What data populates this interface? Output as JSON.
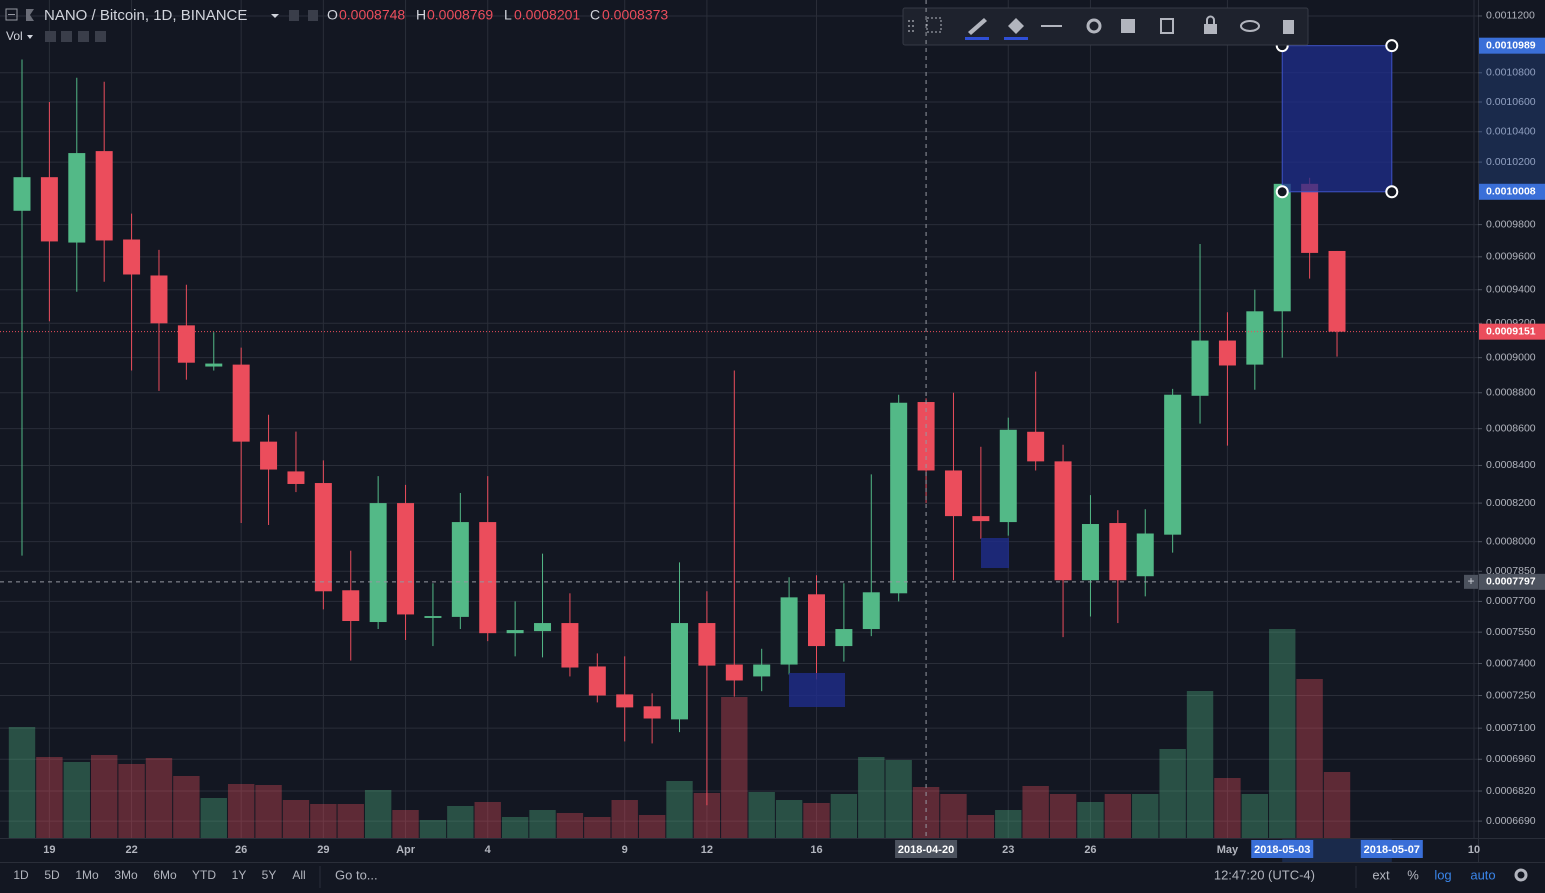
{
  "chart_data": {
    "type": "candlestick",
    "title": "NANO / Bitcoin, 1D, BINANCE",
    "legend_labels": [
      "O",
      "H",
      "L",
      "C"
    ],
    "volume_label": "Vol",
    "x": [
      "2018-03-18",
      "2018-03-19",
      "2018-03-20",
      "2018-03-21",
      "2018-03-22",
      "2018-03-23",
      "2018-03-24",
      "2018-03-25",
      "2018-03-26",
      "2018-03-27",
      "2018-03-28",
      "2018-03-29",
      "2018-03-30",
      "2018-03-31",
      "2018-04-01",
      "2018-04-02",
      "2018-04-03",
      "2018-04-04",
      "2018-04-05",
      "2018-04-06",
      "2018-04-07",
      "2018-04-08",
      "2018-04-09",
      "2018-04-10",
      "2018-04-11",
      "2018-04-12",
      "2018-04-13",
      "2018-04-14",
      "2018-04-15",
      "2018-04-16",
      "2018-04-17",
      "2018-04-18",
      "2018-04-19",
      "2018-04-20",
      "2018-04-21",
      "2018-04-22",
      "2018-04-23",
      "2018-04-24",
      "2018-04-25",
      "2018-04-26",
      "2018-04-27",
      "2018-04-28",
      "2018-04-29",
      "2018-04-30",
      "2018-05-01",
      "2018-05-02",
      "2018-05-03",
      "2018-05-04",
      "2018-05-05"
    ],
    "open": [
      0.0009887,
      0.0010102,
      0.0009688,
      0.0010272,
      0.0009707,
      0.0009486,
      0.0009188,
      0.0008949,
      0.000896,
      0.0008529,
      0.0008368,
      0.0008306,
      0.0007755,
      0.0007599,
      0.00082,
      0.0007619,
      0.0007624,
      0.0008101,
      0.0007545,
      0.0007555,
      0.0007594,
      0.0007386,
      0.0007255,
      0.00072,
      0.000714,
      0.0007594,
      0.0007395,
      0.0007339,
      0.0007395,
      0.0007735,
      0.0007483,
      0.0007565,
      0.000774,
      0.0008748,
      0.0008373,
      0.0008132,
      0.0008101,
      0.0008583,
      0.0008422,
      0.0007805,
      0.0008096,
      0.0007825,
      0.0008036,
      0.0008783,
      0.0009099,
      0.000896,
      0.0009271,
      0.0010059,
      0.0009636
    ],
    "high": [
      0.0010892,
      0.00106,
      0.0010766,
      0.0010738,
      0.0009869,
      0.0009643,
      0.000943,
      0.0009148,
      0.0009058,
      0.0008677,
      0.0008584,
      0.0008427,
      0.0007954,
      0.0008343,
      0.0008296,
      0.000779,
      0.0008253,
      0.0008343,
      0.00077,
      0.0007939,
      0.000774,
      0.0007448,
      0.0007434,
      0.000726,
      0.0007895,
      0.000775,
      0.0008926,
      0.000747,
      0.000782,
      0.000783,
      0.000779,
      0.0008352,
      0.0008789,
      0.0008769,
      0.00088,
      0.0008501,
      0.0008661,
      0.000892,
      0.0008512,
      0.0008242,
      0.0008163,
      0.0008168,
      0.0008822,
      0.0009679,
      0.0009265,
      0.00094,
      0.0010059,
      0.0010098,
      0.0009636
    ],
    "low": [
      0.0007929,
      0.0009212,
      0.0009388,
      0.0009448,
      0.0008926,
      0.0008811,
      0.0008874,
      0.0008926,
      0.0008096,
      0.0008086,
      0.0008258,
      0.0007661,
      0.0007414,
      0.0007565,
      0.0007512,
      0.0007483,
      0.0007565,
      0.0007507,
      0.0007434,
      0.0007429,
      0.0007339,
      0.0007218,
      0.000704,
      0.0007031,
      0.0007082,
      0.0006758,
      0.0007245,
      0.000727,
      0.0007348,
      0.0007325,
      0.0007409,
      0.0007531,
      0.00077,
      0.0008201,
      0.0007805,
      0.0008015,
      0.0008031,
      0.0008373,
      0.0007526,
      0.0007626,
      0.0007594,
      0.0007725,
      0.0007944,
      0.0008628,
      0.0008507,
      0.0008817,
      0.0009,
      0.0009467,
      0.0009006
    ],
    "close": [
      0.0010102,
      0.0009695,
      0.0010259,
      0.0009701,
      0.0009492,
      0.00092,
      0.0008971,
      0.0008966,
      0.0008529,
      0.0008378,
      0.0008301,
      0.000775,
      0.0007604,
      0.00082,
      0.0007636,
      0.0007628,
      0.0008101,
      0.0007545,
      0.000756,
      0.0007594,
      0.0007381,
      0.000725,
      0.0007195,
      0.0007144,
      0.0007594,
      0.000739,
      0.000732,
      0.0007395,
      0.000772,
      0.0007483,
      0.0007565,
      0.0007745,
      0.0008744,
      0.0008373,
      0.0008132,
      0.0008106,
      0.0008594,
      0.0008422,
      0.0007805,
      0.0008091,
      0.0007805,
      0.0008042,
      0.0008789,
      0.0009099,
      0.0008955,
      0.0009271,
      0.0010059,
      0.0009624,
      0.0009151
    ],
    "volume": [
      111,
      81,
      76,
      83,
      74,
      80,
      62,
      40,
      54,
      53,
      38,
      34,
      34,
      48,
      28,
      18,
      32,
      36,
      21,
      28,
      25,
      21,
      38,
      23,
      57,
      45,
      141,
      46,
      38,
      35,
      44,
      81,
      78,
      51,
      44,
      23,
      28,
      52,
      44,
      36,
      44,
      44,
      89,
      147,
      60,
      44,
      209,
      159,
      66
    ],
    "up_color": "#53b987",
    "down_color": "#eb4d5c",
    "log_scale": true,
    "grid": true,
    "ylim": [
      0.0006618,
      0.0011315
    ],
    "yticks": [
      {
        "value": 0.00112,
        "label": "0.0011200"
      },
      {
        "value": 0.00108,
        "label": "0.0010800"
      },
      {
        "value": 0.00106,
        "label": "0.0010600"
      },
      {
        "value": 0.00104,
        "label": "0.0010400"
      },
      {
        "value": 0.00102,
        "label": "0.0010200"
      },
      {
        "value": 0.00098,
        "label": "0.0009800"
      },
      {
        "value": 0.00096,
        "label": "0.0009600"
      },
      {
        "value": 0.00094,
        "label": "0.0009400"
      },
      {
        "value": 0.00092,
        "label": "0.0009200"
      },
      {
        "value": 0.0009,
        "label": "0.0009000"
      },
      {
        "value": 0.00088,
        "label": "0.0008800"
      },
      {
        "value": 0.00086,
        "label": "0.0008600"
      },
      {
        "value": 0.00084,
        "label": "0.0008400"
      },
      {
        "value": 0.00082,
        "label": "0.0008200"
      },
      {
        "value": 0.0008,
        "label": "0.0008000"
      },
      {
        "value": 0.000785,
        "label": "0.0007850"
      },
      {
        "value": 0.00077,
        "label": "0.0007700"
      },
      {
        "value": 0.000755,
        "label": "0.0007550"
      },
      {
        "value": 0.00074,
        "label": "0.0007400"
      },
      {
        "value": 0.000725,
        "label": "0.0007250"
      },
      {
        "value": 0.00071,
        "label": "0.0007100"
      },
      {
        "value": 0.000696,
        "label": "0.0006960"
      },
      {
        "value": 0.000682,
        "label": "0.0006820"
      },
      {
        "value": 0.000669,
        "label": "0.0006690"
      }
    ],
    "xlim": [
      "2018-03-17",
      "2018-05-10"
    ],
    "xticks": [
      {
        "value": "2018-03-19",
        "label": "19"
      },
      {
        "value": "2018-03-22",
        "label": "22"
      },
      {
        "value": "2018-03-26",
        "label": "26"
      },
      {
        "value": "2018-03-29",
        "label": "29"
      },
      {
        "value": "2018-04-01",
        "label": "Apr"
      },
      {
        "value": "2018-04-04",
        "label": "4"
      },
      {
        "value": "2018-04-09",
        "label": "9"
      },
      {
        "value": "2018-04-12",
        "label": "12"
      },
      {
        "value": "2018-04-16",
        "label": "16"
      },
      {
        "value": "2018-04-23",
        "label": "23"
      },
      {
        "value": "2018-04-26",
        "label": "26"
      },
      {
        "value": "2018-05-01",
        "label": "May"
      },
      {
        "value": "2018-05-10",
        "label": "10"
      }
    ],
    "crosshair": {
      "price": 0.0007797,
      "date": "2018-04-20"
    },
    "rectangle": {
      "top": 0.0010989,
      "bottom": 0.0010008,
      "start": "2018-05-03",
      "end": "2018-05-07",
      "color": "#1f2d8c"
    }
  },
  "toolbar": {
    "intervals": [
      "1D",
      "5D",
      "1Mo",
      "3Mo",
      "6Mo",
      "YTD",
      "1Y",
      "5Y",
      "All"
    ],
    "goto": "Go to...",
    "time": "12:47:20 (UTC-4)",
    "options": [
      "ext",
      "%",
      "log",
      "auto"
    ]
  }
}
